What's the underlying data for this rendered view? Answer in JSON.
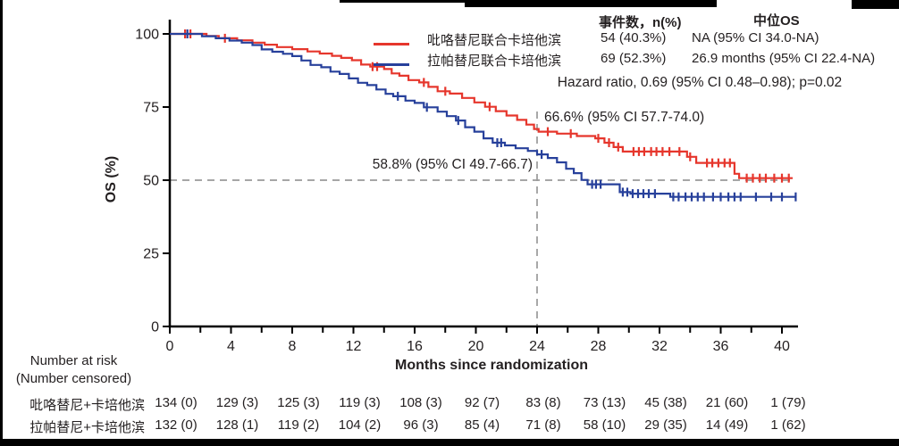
{
  "legend": {
    "col1_header": "事件数，n(%)",
    "col2_header": "中位OS",
    "rows": [
      {
        "name": "吡咯替尼联合卡培他滨",
        "events": "54 (40.3%)",
        "median_os": "NA (95% CI 34.0-NA)",
        "color": "#e6362c"
      },
      {
        "name": "拉帕替尼联合卡培他滨",
        "events": "69 (52.3%)",
        "median_os": "26.9 months (95% CI 22.4-NA)",
        "color": "#27409b"
      }
    ],
    "hazard_ratio": "Hazard ratio, 0.69 (95% CI 0.48–0.98); p=0.02"
  },
  "chart_data": {
    "type": "line",
    "subtype": "kaplan-meier-step-survival",
    "xlabel": "Months since randomization",
    "ylabel": "OS (%)",
    "xlim": [
      0,
      41
    ],
    "ylim": [
      0,
      100
    ],
    "xticks": [
      0,
      4,
      8,
      12,
      16,
      20,
      24,
      28,
      32,
      36,
      40
    ],
    "minor_xtick_every": 2,
    "yticks": [
      0,
      25,
      50,
      75,
      100
    ],
    "grid": false,
    "reference_lines": {
      "horizontal_pct": 50,
      "vertical_month": 24
    },
    "annotations": [
      {
        "text": "66.6% (95% CI 57.7-74.0)",
        "series": "吡咯替尼联合卡培他滨",
        "month": 24,
        "value_pct": 66.6
      },
      {
        "text": "58.8% (95% CI 49.7-66.7)",
        "series": "拉帕替尼联合卡培他滨",
        "month": 24,
        "value_pct": 58.8
      }
    ],
    "series": [
      {
        "name": "吡咯替尼联合卡培他滨",
        "color": "#e6362c",
        "steps": [
          [
            0,
            100
          ],
          [
            2.4,
            99.3
          ],
          [
            3.2,
            98.5
          ],
          [
            4.4,
            97.8
          ],
          [
            5.4,
            97.0
          ],
          [
            6.2,
            96.3
          ],
          [
            7.0,
            95.5
          ],
          [
            8.0,
            94.8
          ],
          [
            9.0,
            94.0
          ],
          [
            9.8,
            93.3
          ],
          [
            10.6,
            92.5
          ],
          [
            11.2,
            91.8
          ],
          [
            11.9,
            91.0
          ],
          [
            12.5,
            89.5
          ],
          [
            13.1,
            88.8
          ],
          [
            14.0,
            88.0
          ],
          [
            14.5,
            86.5
          ],
          [
            15.0,
            85.7
          ],
          [
            15.6,
            84.2
          ],
          [
            16.3,
            83.4
          ],
          [
            16.9,
            81.9
          ],
          [
            17.5,
            80.4
          ],
          [
            18.3,
            79.6
          ],
          [
            19.1,
            78.1
          ],
          [
            19.9,
            76.6
          ],
          [
            20.6,
            75.1
          ],
          [
            21.3,
            73.6
          ],
          [
            22.0,
            72.1
          ],
          [
            22.7,
            70.6
          ],
          [
            23.3,
            69.0
          ],
          [
            23.8,
            67.5
          ],
          [
            24.1,
            66.6
          ],
          [
            25.3,
            65.9
          ],
          [
            26.6,
            65.1
          ],
          [
            27.8,
            64.3
          ],
          [
            28.4,
            62.8
          ],
          [
            29.0,
            61.3
          ],
          [
            29.6,
            59.8
          ],
          [
            33.8,
            58.0
          ],
          [
            34.4,
            55.9
          ],
          [
            36.9,
            52.2
          ],
          [
            37.2,
            50.7
          ],
          [
            40.7,
            50.7
          ]
        ],
        "censors": [
          [
            1.0,
            100
          ],
          [
            1.35,
            100
          ],
          [
            3.6,
            98.5
          ],
          [
            13.25,
            88.8
          ],
          [
            13.55,
            88.8
          ],
          [
            16.6,
            83.4
          ],
          [
            18.0,
            80.4
          ],
          [
            20.9,
            75.1
          ],
          [
            24.7,
            66.6
          ],
          [
            26.2,
            65.9
          ],
          [
            28.0,
            64.3
          ],
          [
            28.7,
            62.8
          ],
          [
            29.3,
            61.3
          ],
          [
            30.3,
            59.8
          ],
          [
            30.65,
            59.8
          ],
          [
            31.0,
            59.8
          ],
          [
            31.45,
            59.8
          ],
          [
            31.8,
            59.8
          ],
          [
            32.2,
            59.8
          ],
          [
            32.65,
            59.8
          ],
          [
            33.3,
            59.8
          ],
          [
            34.0,
            58.0
          ],
          [
            35.1,
            55.9
          ],
          [
            35.45,
            55.9
          ],
          [
            35.85,
            55.9
          ],
          [
            36.25,
            55.9
          ],
          [
            36.6,
            55.9
          ],
          [
            37.7,
            50.7
          ],
          [
            38.1,
            50.7
          ],
          [
            38.55,
            50.7
          ],
          [
            38.95,
            50.7
          ],
          [
            39.5,
            50.7
          ],
          [
            40.0,
            50.7
          ],
          [
            40.45,
            50.7
          ]
        ]
      },
      {
        "name": "拉帕替尼联合卡培他滨",
        "color": "#27409b",
        "steps": [
          [
            0,
            100
          ],
          [
            2.1,
            99.2
          ],
          [
            3.0,
            98.5
          ],
          [
            3.9,
            97.7
          ],
          [
            4.7,
            97.0
          ],
          [
            5.4,
            96.2
          ],
          [
            6.0,
            94.7
          ],
          [
            6.7,
            93.9
          ],
          [
            7.4,
            93.2
          ],
          [
            8.0,
            92.4
          ],
          [
            8.6,
            90.9
          ],
          [
            9.2,
            89.4
          ],
          [
            9.9,
            88.6
          ],
          [
            10.5,
            87.1
          ],
          [
            11.1,
            86.3
          ],
          [
            11.7,
            84.8
          ],
          [
            12.3,
            83.3
          ],
          [
            12.9,
            82.5
          ],
          [
            13.5,
            81.0
          ],
          [
            14.1,
            79.5
          ],
          [
            14.6,
            78.7
          ],
          [
            15.4,
            77.2
          ],
          [
            16.0,
            76.4
          ],
          [
            16.6,
            74.9
          ],
          [
            17.5,
            73.4
          ],
          [
            18.1,
            71.9
          ],
          [
            18.7,
            70.4
          ],
          [
            19.3,
            68.1
          ],
          [
            19.9,
            66.6
          ],
          [
            20.5,
            64.3
          ],
          [
            21.1,
            62.8
          ],
          [
            21.9,
            61.9
          ],
          [
            22.6,
            60.9
          ],
          [
            23.4,
            60.0
          ],
          [
            24.0,
            58.8
          ],
          [
            24.7,
            57.6
          ],
          [
            25.3,
            56.1
          ],
          [
            25.9,
            53.9
          ],
          [
            26.4,
            52.4
          ],
          [
            26.9,
            50.1
          ],
          [
            27.3,
            48.6
          ],
          [
            29.4,
            45.9
          ],
          [
            30.1,
            45.4
          ],
          [
            32.7,
            44.3
          ],
          [
            40.9,
            44.3
          ]
        ],
        "censors": [
          [
            1.15,
            100
          ],
          [
            14.9,
            78.7
          ],
          [
            16.8,
            74.9
          ],
          [
            18.85,
            70.4
          ],
          [
            21.4,
            62.8
          ],
          [
            21.65,
            62.8
          ],
          [
            24.3,
            58.8
          ],
          [
            27.6,
            48.6
          ],
          [
            27.85,
            48.6
          ],
          [
            28.15,
            48.6
          ],
          [
            29.6,
            45.9
          ],
          [
            29.9,
            45.9
          ],
          [
            30.25,
            45.4
          ],
          [
            30.6,
            45.4
          ],
          [
            30.95,
            45.4
          ],
          [
            31.3,
            45.4
          ],
          [
            31.7,
            45.4
          ],
          [
            32.9,
            44.3
          ],
          [
            33.25,
            44.3
          ],
          [
            33.7,
            44.3
          ],
          [
            34.1,
            44.3
          ],
          [
            34.5,
            44.3
          ],
          [
            34.9,
            44.3
          ],
          [
            35.5,
            44.3
          ],
          [
            36.0,
            44.3
          ],
          [
            36.5,
            44.3
          ],
          [
            36.9,
            44.3
          ],
          [
            37.3,
            44.3
          ],
          [
            38.3,
            44.3
          ],
          [
            39.3,
            44.3
          ],
          [
            40.0,
            44.3
          ],
          [
            40.9,
            44.3
          ]
        ]
      }
    ]
  },
  "risk_table": {
    "header_line1": "Number at risk",
    "header_line2": "(Number censored)",
    "months": [
      0,
      4,
      8,
      12,
      16,
      20,
      24,
      28,
      32,
      36,
      40
    ],
    "rows": [
      {
        "label": "吡咯替尼+卡培他滨",
        "values": [
          "134 (0)",
          "129 (3)",
          "125 (3)",
          "119 (3)",
          "108 (3)",
          "92 (7)",
          "83 (8)",
          "73 (13)",
          "45 (38)",
          "21 (60)",
          "1 (79)"
        ]
      },
      {
        "label": "拉帕替尼+卡培他滨",
        "values": [
          "132 (0)",
          "128 (1)",
          "119 (2)",
          "104 (2)",
          "96 (3)",
          "85 (4)",
          "71 (8)",
          "58 (10)",
          "29 (35)",
          "14 (49)",
          "1 (62)"
        ]
      }
    ]
  }
}
